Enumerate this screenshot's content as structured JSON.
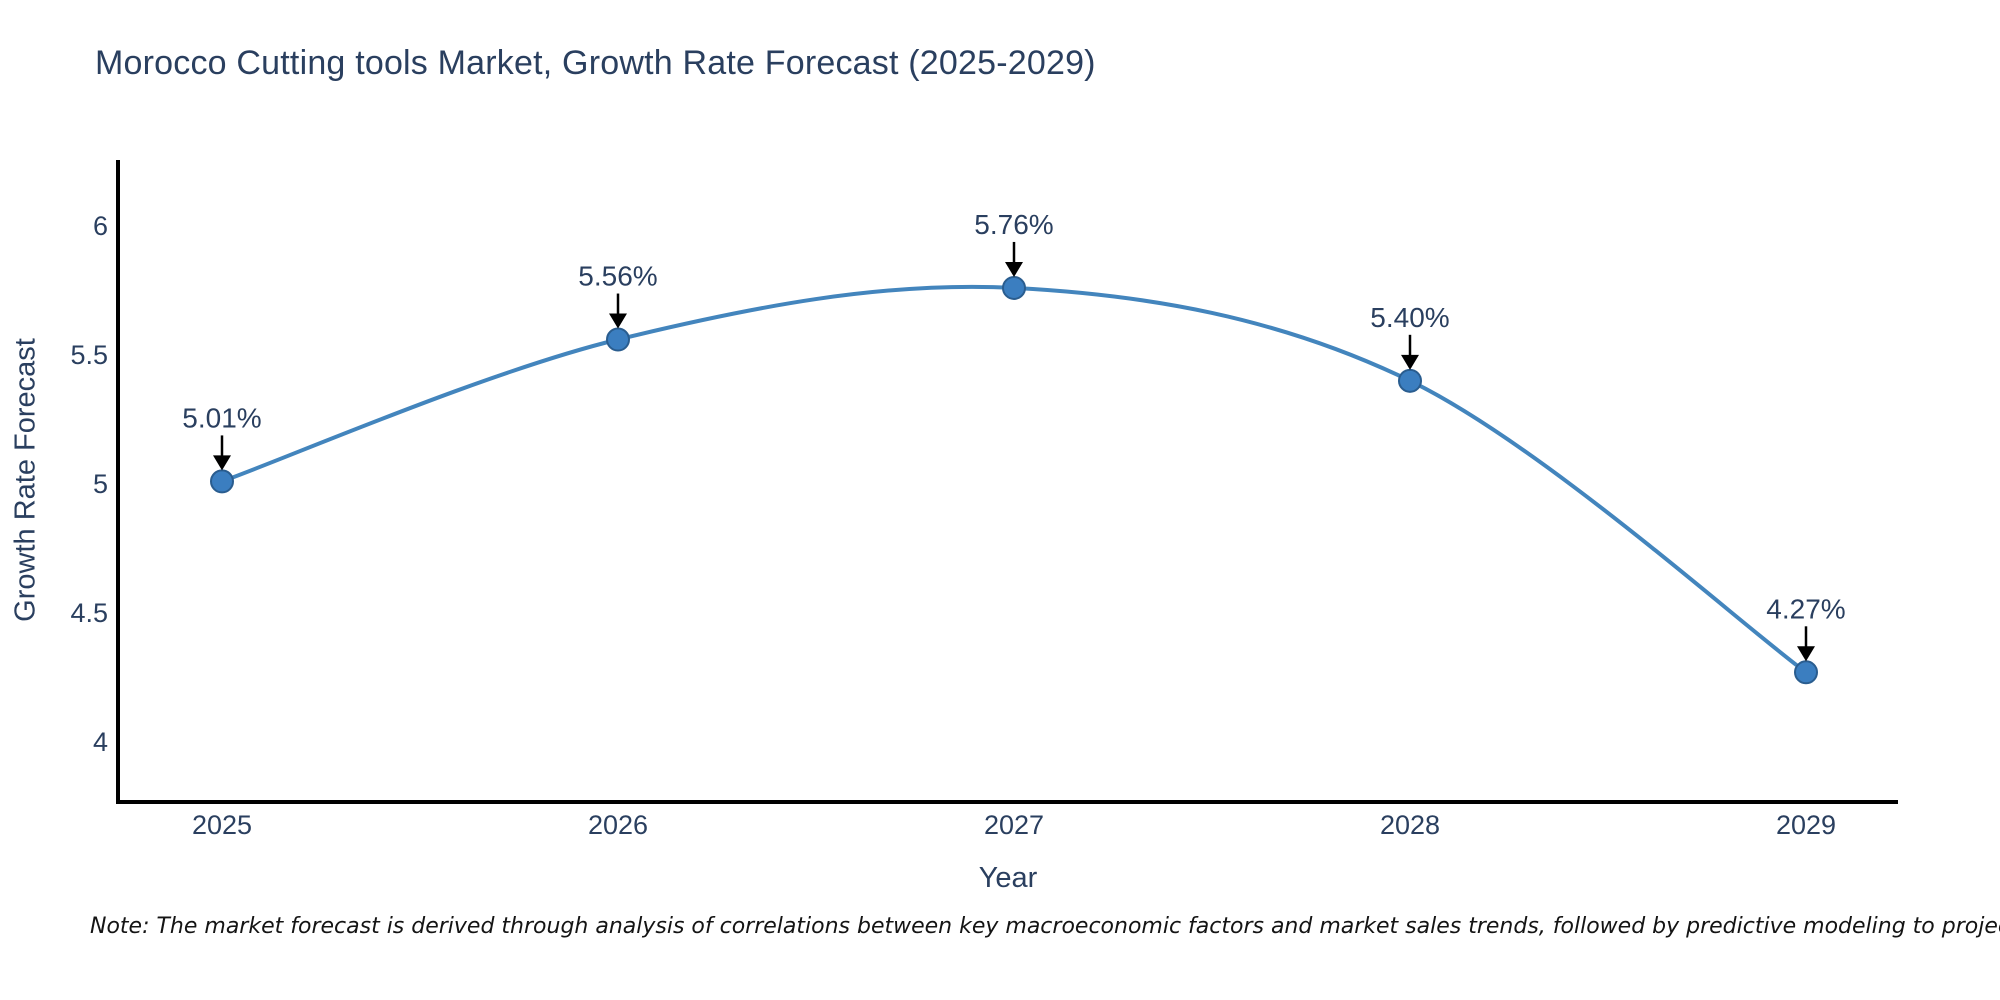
{
  "header": {
    "title": "Morocco Cutting tools Market, Growth Rate Forecast (2025-2029)"
  },
  "footnote": "Note: The market forecast is derived through analysis of correlations between key macroeconomic factors and market sales trends, followed by predictive modeling to project future sales",
  "chart_data": {
    "type": "line",
    "title": "Morocco Cutting tools Market, Growth Rate Forecast (2025-2029)",
    "categories": [
      "2025",
      "2026",
      "2027",
      "2028",
      "2029"
    ],
    "series": [
      {
        "name": "Growth Rate Forecast",
        "values": [
          5.01,
          5.56,
          5.76,
          5.4,
          4.27
        ],
        "point_labels": [
          "5.01%",
          "5.56%",
          "5.76%",
          "5.40%",
          "4.27%"
        ]
      }
    ],
    "xlabel": "Year",
    "ylabel": "Growth Rate Forecast",
    "ylim": [
      3.775,
      6.256
    ],
    "y_ticks": [
      "6",
      "5.5",
      "5",
      "4.5",
      "4"
    ],
    "y_tick_values": [
      6,
      5.5,
      5,
      4.5,
      4
    ],
    "grid": false,
    "legend": "none",
    "line_shape": "spline",
    "colors": {
      "line": "#4385bd",
      "marker_fill": "#3b7ec0",
      "marker_edge": "#2a5d8f",
      "axis_line": "#000000",
      "annotation_arrow": "#000000",
      "annotation_text": "#2a3f5f",
      "tick_text": "#2a3f5f",
      "background": "#ffffff"
    }
  }
}
